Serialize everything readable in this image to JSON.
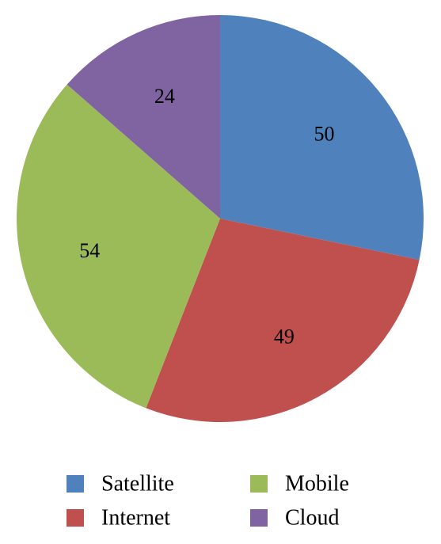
{
  "chart_data": {
    "type": "pie",
    "categories": [
      "Satellite",
      "Internet",
      "Mobile",
      "Cloud"
    ],
    "values": [
      50,
      49,
      54,
      24
    ],
    "colors": [
      "#4f81bd",
      "#c0504d",
      "#9bbb59",
      "#8064a2"
    ],
    "start_angle": "12 o'clock",
    "direction": "clockwise",
    "legend_position": "bottom",
    "legend": [
      {
        "label": "Satellite",
        "color": "#4f81bd"
      },
      {
        "label": "Mobile",
        "color": "#9bbb59"
      },
      {
        "label": "Internet",
        "color": "#c0504d"
      },
      {
        "label": "Cloud",
        "color": "#8064a2"
      }
    ]
  }
}
